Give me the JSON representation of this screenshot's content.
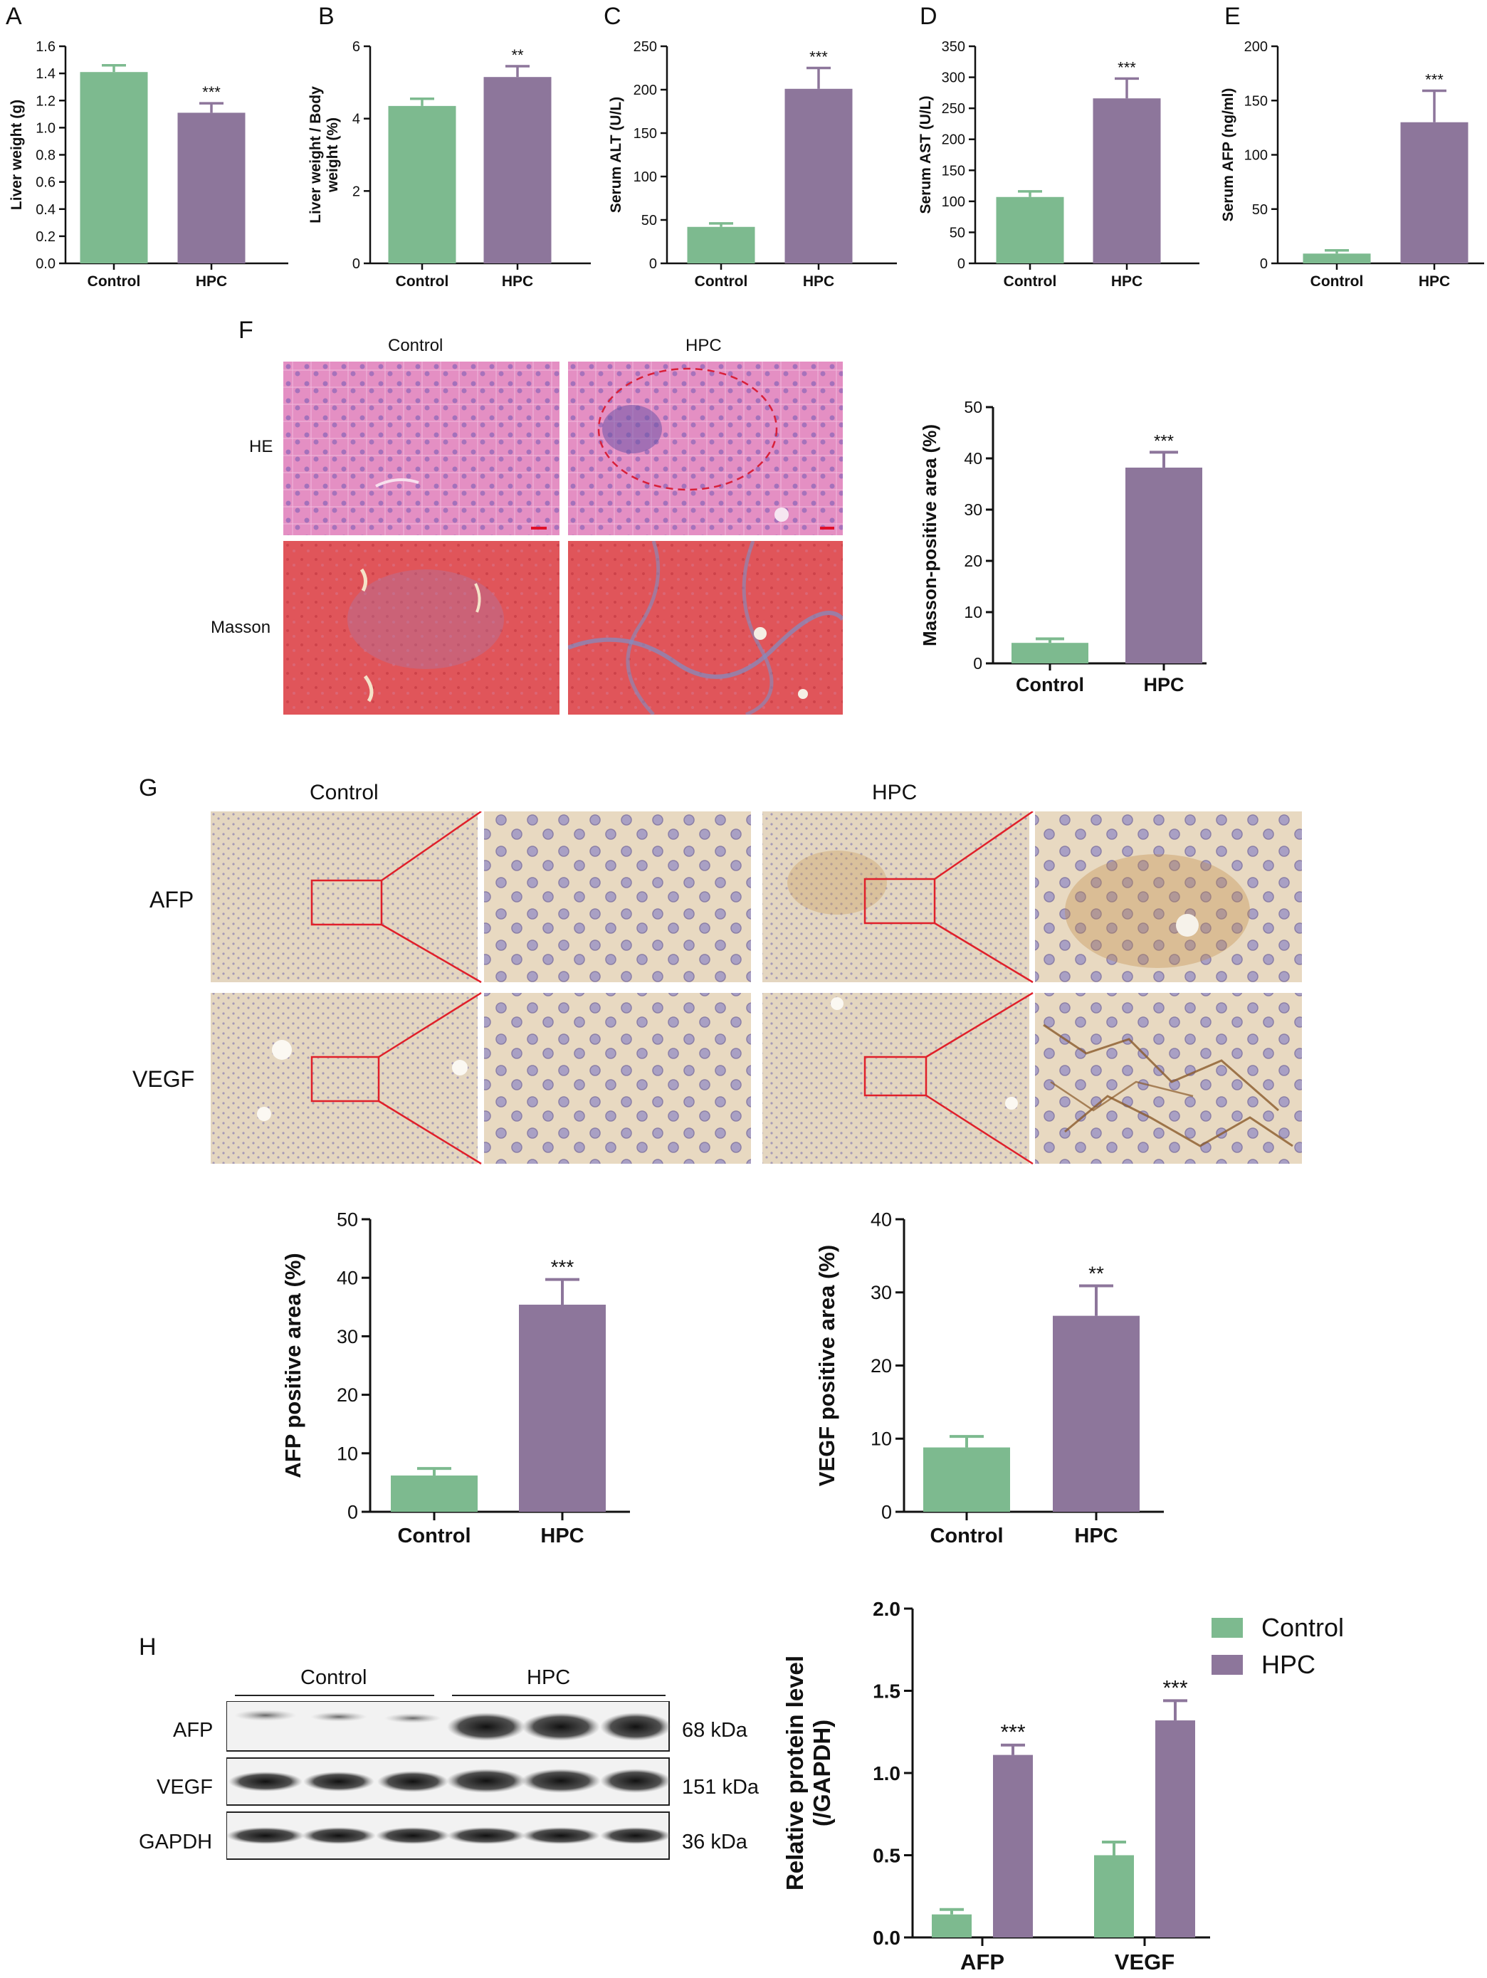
{
  "colors": {
    "control": "#7dba8f",
    "hpc": "#8d769b",
    "axis": "#111111",
    "scale_bar": "#e0102a",
    "inset_box": "#e0202a"
  },
  "panel_letters": {
    "A": "A",
    "B": "B",
    "C": "C",
    "D": "D",
    "E": "E",
    "F": "F",
    "G": "G",
    "H": "H"
  },
  "histology_F": {
    "col_control": "Control",
    "col_hpc": "HPC",
    "row_he": "HE",
    "row_masson": "Masson"
  },
  "histology_G": {
    "col_control": "Control",
    "col_hpc": "HPC",
    "row_afp": "AFP",
    "row_vegf": "VEGF"
  },
  "western_blot": {
    "group_control": "Control",
    "group_hpc": "HPC",
    "rows": [
      {
        "protein": "AFP",
        "size": "68 kDa"
      },
      {
        "protein": "VEGF",
        "size": "151 kDa"
      },
      {
        "protein": "GAPDH",
        "size": "36 kDa"
      }
    ]
  },
  "chart_data": [
    {
      "panel": "A",
      "type": "bar",
      "categories": [
        "Control",
        "HPC"
      ],
      "values": [
        1.41,
        1.11
      ],
      "errors": [
        0.05,
        0.07
      ],
      "ylabel": "Liver weight (g)",
      "ylim": [
        0,
        1.6
      ],
      "yticks": [
        "0.0",
        "0.2",
        "0.4",
        "0.6",
        "0.8",
        "1.0",
        "1.2",
        "1.4",
        "1.6"
      ],
      "significance": [
        "",
        "***"
      ]
    },
    {
      "panel": "B",
      "type": "bar",
      "categories": [
        "Control",
        "HPC"
      ],
      "values": [
        4.35,
        5.15
      ],
      "errors": [
        0.2,
        0.3
      ],
      "ylabel": [
        "Liver weight / Body",
        "weight (%)"
      ],
      "ylim": [
        0,
        6
      ],
      "yticks": [
        "0",
        "2",
        "4",
        "6"
      ],
      "significance": [
        "",
        "**"
      ]
    },
    {
      "panel": "C",
      "type": "bar",
      "categories": [
        "Control",
        "HPC"
      ],
      "values": [
        42,
        201
      ],
      "errors": [
        4,
        24
      ],
      "ylabel": "Serum ALT (U/L)",
      "ylim": [
        0,
        250
      ],
      "yticks": [
        "0",
        "50",
        "100",
        "150",
        "200",
        "250"
      ],
      "significance": [
        "",
        "***"
      ]
    },
    {
      "panel": "D",
      "type": "bar",
      "categories": [
        "Control",
        "HPC"
      ],
      "values": [
        107,
        266
      ],
      "errors": [
        9,
        32
      ],
      "ylabel": "Serum AST (U/L)",
      "ylim": [
        0,
        350
      ],
      "yticks": [
        "0",
        "50",
        "100",
        "150",
        "200",
        "250",
        "300",
        "350"
      ],
      "significance": [
        "",
        "***"
      ]
    },
    {
      "panel": "E",
      "type": "bar",
      "categories": [
        "Control",
        "HPC"
      ],
      "values": [
        9,
        130
      ],
      "errors": [
        3,
        29
      ],
      "ylabel": "Serum AFP (ng/ml)",
      "ylim": [
        0,
        200
      ],
      "yticks": [
        "0",
        "50",
        "100",
        "150",
        "200"
      ],
      "significance": [
        "",
        "***"
      ]
    },
    {
      "panel": "F",
      "type": "bar",
      "categories": [
        "Control",
        "HPC"
      ],
      "values": [
        4,
        38.2
      ],
      "errors": [
        0.8,
        3
      ],
      "ylabel": "Masson-positive area (%)",
      "ylim": [
        0,
        50
      ],
      "yticks": [
        "0",
        "10",
        "20",
        "30",
        "40",
        "50"
      ],
      "significance": [
        "",
        "***"
      ]
    },
    {
      "panel": "G-AFP",
      "type": "bar",
      "categories": [
        "Control",
        "HPC"
      ],
      "values": [
        6.2,
        35.4
      ],
      "errors": [
        1.2,
        4.3
      ],
      "ylabel": "AFP positive area (%)",
      "ylim": [
        0,
        50
      ],
      "yticks": [
        "0",
        "10",
        "20",
        "30",
        "40",
        "50"
      ],
      "significance": [
        "",
        "***"
      ]
    },
    {
      "panel": "G-VEGF",
      "type": "bar",
      "categories": [
        "Control",
        "HPC"
      ],
      "values": [
        8.8,
        26.8
      ],
      "errors": [
        1.5,
        4.1
      ],
      "ylabel": "VEGF positive area (%)",
      "ylim": [
        0,
        40
      ],
      "yticks": [
        "0",
        "10",
        "20",
        "30",
        "40"
      ],
      "significance": [
        "",
        "**"
      ]
    },
    {
      "panel": "H",
      "type": "bar",
      "categories": [
        "AFP",
        "VEGF"
      ],
      "series": [
        {
          "name": "Control",
          "values": [
            0.14,
            0.5
          ],
          "errors": [
            0.03,
            0.08
          ]
        },
        {
          "name": "HPC",
          "values": [
            1.11,
            1.32
          ],
          "errors": [
            0.06,
            0.12
          ]
        }
      ],
      "ylabel": [
        "Relative protein  level",
        "(/GAPDH)"
      ],
      "ylim": [
        0,
        2.0
      ],
      "yticks": [
        "0.0",
        "0.5",
        "1.0",
        "1.5",
        "2.0"
      ],
      "significance": [
        "***",
        "***"
      ],
      "legend": "top-right"
    }
  ]
}
